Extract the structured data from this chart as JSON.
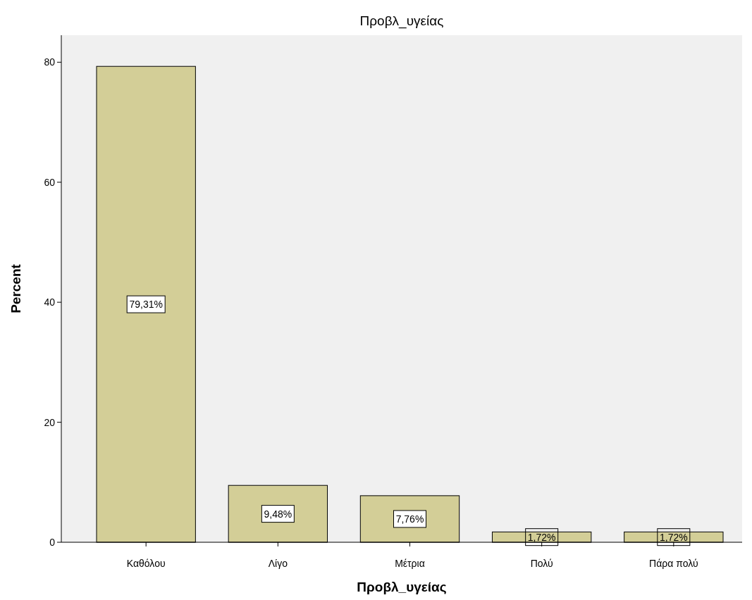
{
  "chart_data": {
    "type": "bar",
    "title": "Προβλ_υγείας",
    "xlabel": "Προβλ_υγείας",
    "ylabel": "Percent",
    "categories": [
      "Καθόλου",
      "Λίγο",
      "Μέτρια",
      "Πολύ",
      "Πάρα πολύ"
    ],
    "values": [
      79.31,
      9.48,
      7.76,
      1.72,
      1.72
    ],
    "value_labels": [
      "79,31%",
      "9,48%",
      "7,76%",
      "1,72%",
      "1,72%"
    ],
    "color": "#d3ce97",
    "ylim": [
      0,
      84.5
    ],
    "yticks": [
      0,
      20,
      40,
      60,
      80
    ],
    "grid": false
  }
}
